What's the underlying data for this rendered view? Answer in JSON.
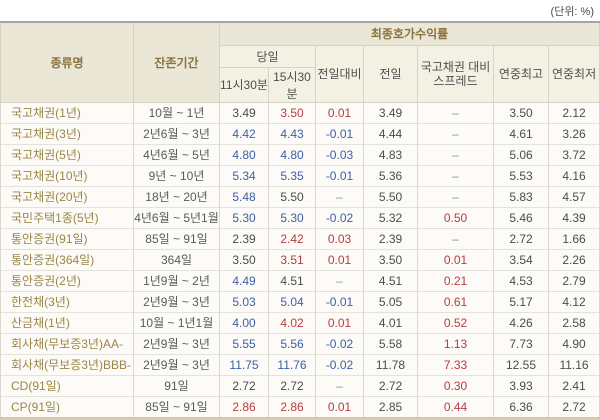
{
  "unit_label": "(단위: %)",
  "colors": {
    "up": "#b93b43",
    "down": "#3e5fa5",
    "flat": "#4c4c4c",
    "dash": "#8f8f8f",
    "header_text": "#8b7340",
    "header_bg": "#ebe7d6",
    "subheader_bg": "#f3f0e4",
    "bottom_border": "#d2cbad"
  },
  "headers": {
    "name": "종류명",
    "period": "잔존기간",
    "group": "최종호가수익률",
    "today": "당일",
    "t1130": "11시30분",
    "t1530": "15시30분",
    "day_change": "전일대비",
    "prev_day": "전일",
    "spread": "국고채권 대비\n스프레드",
    "year_high": "연중최고",
    "year_low": "연중최저"
  },
  "color_legend": {
    "up": "red (rise)",
    "down": "blue (fall)",
    "flat": "dark gray (unchanged/plain)",
    "dash": "gray dash (no value)"
  },
  "chart_data": {
    "type": "table",
    "title": "최종호가수익률",
    "unit": "%",
    "columns": [
      "종류명",
      "잔존기간",
      "당일 11시30분",
      "당일 15시30분",
      "전일대비",
      "전일",
      "국고채권 대비 스프레드",
      "연중최고",
      "연중최저"
    ],
    "rows": [
      {
        "name": "국고채권(1년)",
        "period": "10월 ~ 1년",
        "values": [
          [
            "3.49",
            "flat"
          ],
          [
            "3.50",
            "up"
          ],
          [
            "0.01",
            "up"
          ],
          [
            "3.49",
            "flat"
          ],
          [
            "–",
            "dash"
          ],
          [
            "3.50",
            "flat"
          ],
          [
            "2.12",
            "flat"
          ]
        ]
      },
      {
        "name": "국고채권(3년)",
        "period": "2년6월 ~ 3년",
        "values": [
          [
            "4.42",
            "down"
          ],
          [
            "4.43",
            "down"
          ],
          [
            "-0.01",
            "down"
          ],
          [
            "4.44",
            "flat"
          ],
          [
            "–",
            "dash"
          ],
          [
            "4.61",
            "flat"
          ],
          [
            "3.26",
            "flat"
          ]
        ]
      },
      {
        "name": "국고채권(5년)",
        "period": "4년6월 ~ 5년",
        "values": [
          [
            "4.80",
            "down"
          ],
          [
            "4.80",
            "down"
          ],
          [
            "-0.03",
            "down"
          ],
          [
            "4.83",
            "flat"
          ],
          [
            "–",
            "dash"
          ],
          [
            "5.06",
            "flat"
          ],
          [
            "3.72",
            "flat"
          ]
        ]
      },
      {
        "name": "국고채권(10년)",
        "period": "9년 ~ 10년",
        "values": [
          [
            "5.34",
            "down"
          ],
          [
            "5.35",
            "down"
          ],
          [
            "-0.01",
            "down"
          ],
          [
            "5.36",
            "flat"
          ],
          [
            "–",
            "dash"
          ],
          [
            "5.53",
            "flat"
          ],
          [
            "4.16",
            "flat"
          ]
        ]
      },
      {
        "name": "국고채권(20년)",
        "period": "18년 ~ 20년",
        "values": [
          [
            "5.48",
            "down"
          ],
          [
            "5.50",
            "flat"
          ],
          [
            "–",
            "dash"
          ],
          [
            "5.50",
            "flat"
          ],
          [
            "–",
            "dash"
          ],
          [
            "5.83",
            "flat"
          ],
          [
            "4.57",
            "flat"
          ]
        ]
      },
      {
        "name": "국민주택1종(5년)",
        "period": "4년6월 ~ 5년1월",
        "values": [
          [
            "5.30",
            "down"
          ],
          [
            "5.30",
            "down"
          ],
          [
            "-0.02",
            "down"
          ],
          [
            "5.32",
            "flat"
          ],
          [
            "0.50",
            "up"
          ],
          [
            "5.46",
            "flat"
          ],
          [
            "4.39",
            "flat"
          ]
        ]
      },
      {
        "name": "통안증권(91일)",
        "period": "85일 ~ 91일",
        "values": [
          [
            "2.39",
            "flat"
          ],
          [
            "2.42",
            "up"
          ],
          [
            "0.03",
            "up"
          ],
          [
            "2.39",
            "flat"
          ],
          [
            "–",
            "dash"
          ],
          [
            "2.72",
            "flat"
          ],
          [
            "1.66",
            "flat"
          ]
        ]
      },
      {
        "name": "통안증권(364일)",
        "period": "364일",
        "values": [
          [
            "3.50",
            "flat"
          ],
          [
            "3.51",
            "up"
          ],
          [
            "0.01",
            "up"
          ],
          [
            "3.50",
            "flat"
          ],
          [
            "0.01",
            "up"
          ],
          [
            "3.54",
            "flat"
          ],
          [
            "2.26",
            "flat"
          ]
        ]
      },
      {
        "name": "통안증권(2년)",
        "period": "1년9월 ~ 2년",
        "values": [
          [
            "4.49",
            "down"
          ],
          [
            "4.51",
            "flat"
          ],
          [
            "–",
            "dash"
          ],
          [
            "4.51",
            "flat"
          ],
          [
            "0.21",
            "up"
          ],
          [
            "4.53",
            "flat"
          ],
          [
            "2.79",
            "flat"
          ]
        ]
      },
      {
        "name": "한전채(3년)",
        "period": "2년9월 ~ 3년",
        "values": [
          [
            "5.03",
            "down"
          ],
          [
            "5.04",
            "down"
          ],
          [
            "-0.01",
            "down"
          ],
          [
            "5.05",
            "flat"
          ],
          [
            "0.61",
            "up"
          ],
          [
            "5.17",
            "flat"
          ],
          [
            "4.12",
            "flat"
          ]
        ]
      },
      {
        "name": "산금채(1년)",
        "period": "10월 ~ 1년1월",
        "values": [
          [
            "4.00",
            "down"
          ],
          [
            "4.02",
            "up"
          ],
          [
            "0.01",
            "up"
          ],
          [
            "4.01",
            "flat"
          ],
          [
            "0.52",
            "up"
          ],
          [
            "4.26",
            "flat"
          ],
          [
            "2.58",
            "flat"
          ]
        ]
      },
      {
        "name": "회사채(무보증3년)AA-",
        "period": "2년9월 ~ 3년",
        "values": [
          [
            "5.55",
            "down"
          ],
          [
            "5.56",
            "down"
          ],
          [
            "-0.02",
            "down"
          ],
          [
            "5.58",
            "flat"
          ],
          [
            "1.13",
            "up"
          ],
          [
            "7.73",
            "flat"
          ],
          [
            "4.90",
            "flat"
          ]
        ]
      },
      {
        "name": "회사채(무보증3년)BBB-",
        "period": "2년9월 ~ 3년",
        "values": [
          [
            "11.75",
            "down"
          ],
          [
            "11.76",
            "down"
          ],
          [
            "-0.02",
            "down"
          ],
          [
            "11.78",
            "flat"
          ],
          [
            "7.33",
            "up"
          ],
          [
            "12.55",
            "flat"
          ],
          [
            "11.16",
            "flat"
          ]
        ]
      },
      {
        "name": "CD(91일)",
        "period": "91일",
        "values": [
          [
            "2.72",
            "flat"
          ],
          [
            "2.72",
            "flat"
          ],
          [
            "–",
            "dash"
          ],
          [
            "2.72",
            "flat"
          ],
          [
            "0.30",
            "up"
          ],
          [
            "3.93",
            "flat"
          ],
          [
            "2.41",
            "flat"
          ]
        ]
      },
      {
        "name": "CP(91일)",
        "period": "85일 ~ 91일",
        "values": [
          [
            "2.86",
            "up"
          ],
          [
            "2.86",
            "up"
          ],
          [
            "0.01",
            "up"
          ],
          [
            "2.85",
            "flat"
          ],
          [
            "0.44",
            "up"
          ],
          [
            "6.36",
            "flat"
          ],
          [
            "2.72",
            "flat"
          ]
        ]
      }
    ]
  }
}
